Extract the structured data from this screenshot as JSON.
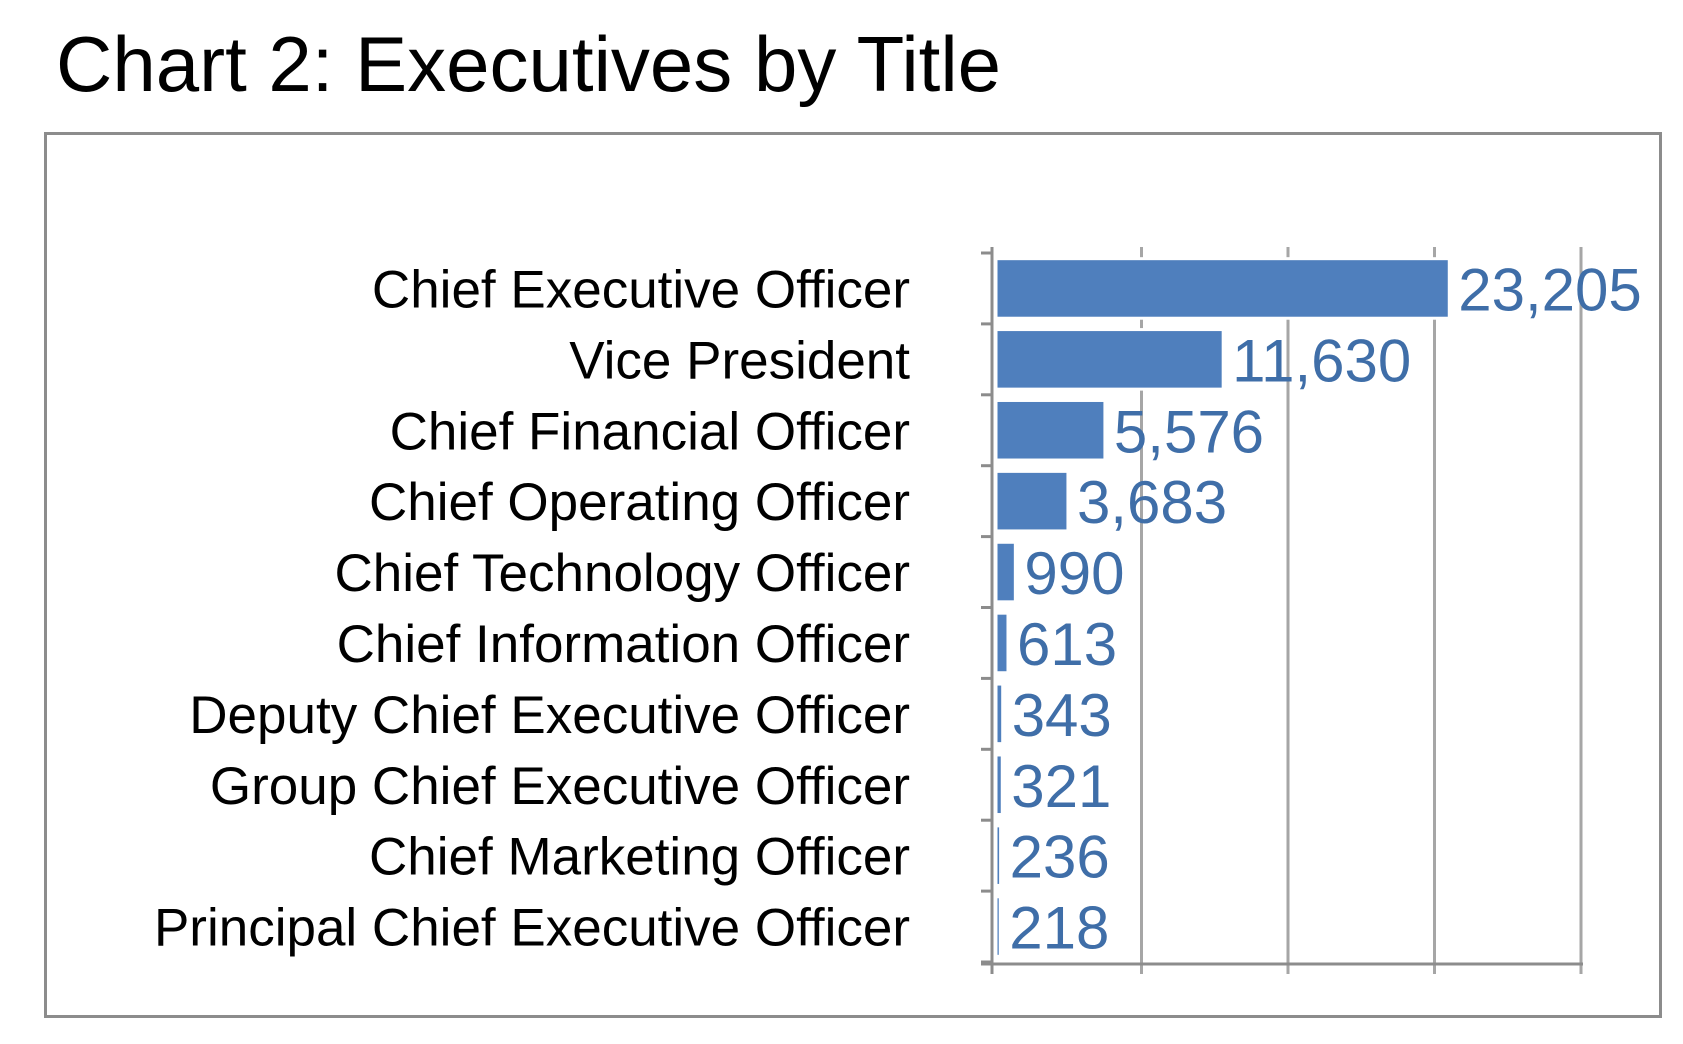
{
  "title": "Chart 2: Executives by Title",
  "colors": {
    "bar": "#4f7fbd",
    "data_label": "#3f6ea8",
    "gridline": "#a6a6a6",
    "axis": "#8c8c8c",
    "frame": "#8c8c8c"
  },
  "chart_data": {
    "type": "bar",
    "orientation": "horizontal",
    "title": "Chart 2: Executives by Title",
    "xlabel": "",
    "ylabel": "",
    "categories": [
      "Chief Executive Officer",
      "Vice President",
      "Chief Financial Officer",
      "Chief Operating Officer",
      "Chief Technology Officer",
      "Chief Information Officer",
      "Deputy Chief Executive Officer",
      "Group Chief Executive Officer",
      "Chief Marketing Officer",
      "Principal Chief Executive Officer"
    ],
    "values": [
      23205,
      11630,
      5576,
      3683,
      990,
      613,
      343,
      321,
      236,
      218
    ],
    "data_labels": [
      "23,205",
      "11,630",
      "5,576",
      "3,683",
      "990",
      "613",
      "343",
      "321",
      "236",
      "218"
    ],
    "xlim": [
      0,
      30000
    ],
    "x_gridlines": [
      0,
      7500,
      15000,
      22500,
      30000
    ],
    "x_tick_labels_shown": false,
    "grid": true,
    "legend": "none"
  }
}
